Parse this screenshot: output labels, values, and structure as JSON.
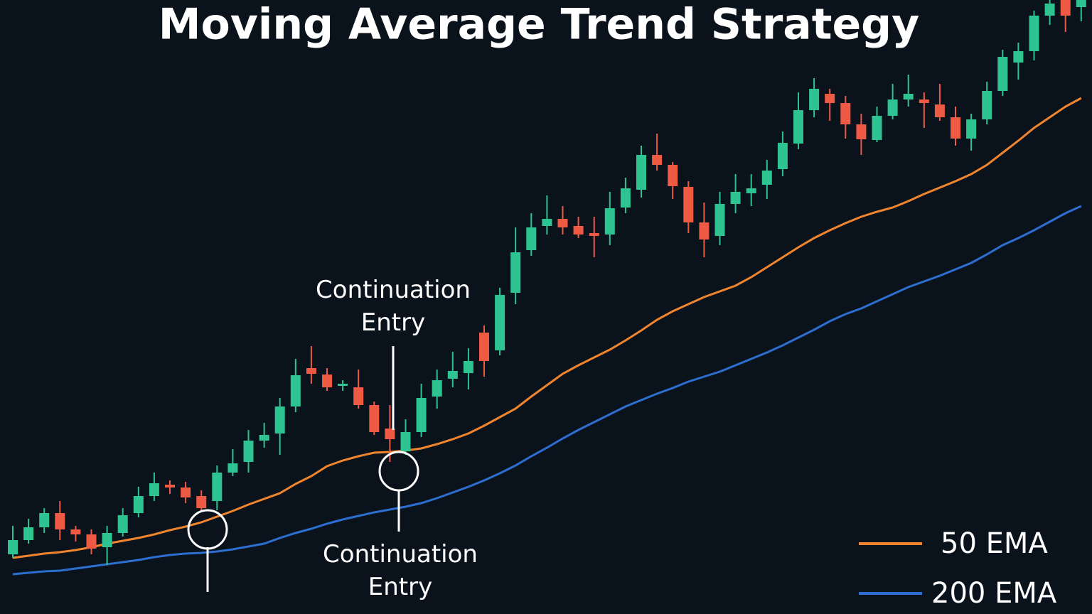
{
  "chart_data": {
    "type": "candlestick",
    "title": "Moving Average Trend Strategy",
    "up_color": "#2ec492",
    "down_color": "#ef5a44",
    "ylim": [
      0,
      864
    ],
    "open": [
      84,
      104,
      122,
      142,
      119,
      112,
      94,
      114,
      142,
      166,
      182,
      178,
      166,
      159,
      199,
      214,
      244,
      254,
      292,
      346,
      337,
      321,
      319,
      294,
      261,
      229,
      256,
      306,
      331,
      339,
      396,
      371,
      452,
      512,
      546,
      556,
      546,
      536,
      534,
      572,
      597,
      646,
      632,
      601,
      551,
      532,
      577,
      592,
      604,
      626,
      662,
      709,
      732,
      719,
      689,
      667,
      701,
      724,
      724,
      717,
      699,
      669,
      696,
      736,
      776,
      792,
      842,
      864,
      854
    ],
    "high": [
      124,
      134,
      149,
      159,
      124,
      119,
      124,
      149,
      179,
      199,
      188,
      186,
      174,
      209,
      232,
      259,
      269,
      304,
      359,
      377,
      346,
      329,
      344,
      299,
      294,
      274,
      324,
      344,
      369,
      374,
      406,
      459,
      544,
      564,
      589,
      574,
      559,
      559,
      594,
      614,
      659,
      676,
      636,
      609,
      579,
      594,
      619,
      619,
      639,
      679,
      734,
      754,
      739,
      729,
      704,
      714,
      746,
      759,
      734,
      746,
      714,
      704,
      749,
      794,
      804,
      849,
      864,
      864,
      864
    ],
    "low": [
      79,
      99,
      114,
      104,
      102,
      84,
      69,
      109,
      136,
      159,
      169,
      156,
      144,
      146,
      194,
      199,
      234,
      224,
      284,
      324,
      314,
      314,
      289,
      252,
      214,
      224,
      249,
      289,
      319,
      316,
      334,
      364,
      436,
      504,
      534,
      534,
      529,
      502,
      519,
      564,
      586,
      624,
      584,
      536,
      502,
      519,
      564,
      574,
      584,
      616,
      654,
      699,
      694,
      669,
      646,
      664,
      696,
      714,
      684,
      694,
      659,
      652,
      689,
      729,
      752,
      779,
      829,
      819,
      834
    ],
    "close": [
      104,
      122,
      142,
      119,
      112,
      92,
      114,
      139,
      166,
      184,
      178,
      164,
      149,
      199,
      212,
      244,
      252,
      292,
      336,
      338,
      319,
      324,
      294,
      256,
      246,
      256,
      304,
      329,
      342,
      356,
      356,
      449,
      509,
      544,
      556,
      544,
      534,
      532,
      571,
      599,
      646,
      632,
      602,
      551,
      527,
      577,
      594,
      599,
      624,
      663,
      709,
      739,
      719,
      689,
      668,
      701,
      724,
      732,
      719,
      699,
      669,
      696,
      736,
      784,
      792,
      842,
      859,
      842,
      864
    ],
    "series": [
      {
        "name": "50 EMA",
        "color": "#f0852d",
        "values": [
          79,
          82,
          85,
          87,
          90,
          94,
          99,
          103,
          107,
          112,
          118,
          123,
          129,
          137,
          145,
          154,
          162,
          170,
          183,
          194,
          208,
          216,
          222,
          227,
          228,
          230,
          233,
          239,
          246,
          254,
          265,
          277,
          289,
          306,
          322,
          338,
          350,
          361,
          372,
          385,
          399,
          414,
          426,
          436,
          446,
          454,
          462,
          474,
          488,
          502,
          516,
          529,
          540,
          550,
          559,
          566,
          572,
          581,
          591,
          600,
          609,
          619,
          632,
          649,
          666,
          684,
          699,
          714,
          726
        ]
      },
      {
        "name": "200 EMA",
        "color": "#2d6fd0",
        "values": [
          56,
          58,
          60,
          61,
          64,
          67,
          70,
          73,
          76,
          80,
          83,
          85,
          86,
          88,
          91,
          95,
          99,
          107,
          114,
          120,
          127,
          133,
          138,
          143,
          147,
          151,
          156,
          163,
          171,
          179,
          188,
          198,
          209,
          222,
          234,
          247,
          259,
          270,
          281,
          292,
          301,
          310,
          318,
          327,
          334,
          341,
          350,
          359,
          368,
          378,
          389,
          400,
          412,
          422,
          430,
          440,
          450,
          460,
          468,
          476,
          485,
          494,
          506,
          519,
          529,
          540,
          552,
          564,
          574
        ]
      }
    ],
    "annotations": [
      "Continuation Entry",
      "Continuation Entry"
    ],
    "legend": "lower right"
  }
}
